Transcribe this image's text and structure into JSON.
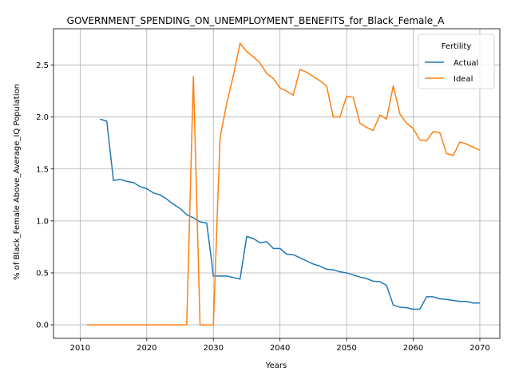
{
  "chart_data": {
    "type": "line",
    "title": "GOVERNMENT_SPENDING_ON_UNEMPLOYMENT_BENEFITS_for_Black_Female_A",
    "xlabel": "Years",
    "ylabel": "% of Black_Female Above_Average_IQ Population",
    "xlim": [
      2006,
      2073
    ],
    "ylim": [
      -0.13,
      2.85
    ],
    "xticks": [
      2010,
      2020,
      2030,
      2040,
      2050,
      2060,
      2070
    ],
    "yticks": [
      0.0,
      0.5,
      1.0,
      1.5,
      2.0,
      2.5
    ],
    "ytick_labels": [
      "0.0",
      "0.5",
      "1.0",
      "1.5",
      "2.0",
      "2.5"
    ],
    "grid": true,
    "legend": {
      "title": "Fertility",
      "placement": "top-right"
    },
    "series": [
      {
        "name": "Actual",
        "color": "#1f77b4",
        "points": [
          [
            2013,
            1.98
          ],
          [
            2014,
            1.96
          ],
          [
            2015,
            1.39
          ],
          [
            2016,
            1.4
          ],
          [
            2017,
            1.38
          ],
          [
            2018,
            1.37
          ],
          [
            2019,
            1.33
          ],
          [
            2020,
            1.31
          ],
          [
            2021,
            1.27
          ],
          [
            2022,
            1.25
          ],
          [
            2023,
            1.21
          ],
          [
            2024,
            1.16
          ],
          [
            2025,
            1.12
          ],
          [
            2026,
            1.06
          ],
          [
            2027,
            1.03
          ],
          [
            2028,
            0.99
          ],
          [
            2029,
            0.98
          ],
          [
            2029.6,
            0.68
          ],
          [
            2030,
            0.47
          ],
          [
            2031,
            0.47
          ],
          [
            2032,
            0.47
          ],
          [
            2033,
            0.455
          ],
          [
            2034,
            0.44
          ],
          [
            2035,
            0.85
          ],
          [
            2036,
            0.83
          ],
          [
            2037,
            0.79
          ],
          [
            2038,
            0.8
          ],
          [
            2039,
            0.735
          ],
          [
            2040,
            0.735
          ],
          [
            2041,
            0.68
          ],
          [
            2042,
            0.675
          ],
          [
            2043,
            0.645
          ],
          [
            2044,
            0.615
          ],
          [
            2045,
            0.585
          ],
          [
            2046,
            0.565
          ],
          [
            2047,
            0.535
          ],
          [
            2048,
            0.53
          ],
          [
            2049,
            0.51
          ],
          [
            2050,
            0.5
          ],
          [
            2051,
            0.48
          ],
          [
            2052,
            0.46
          ],
          [
            2053,
            0.445
          ],
          [
            2054,
            0.42
          ],
          [
            2055,
            0.415
          ],
          [
            2056,
            0.38
          ],
          [
            2057,
            0.19
          ],
          [
            2058,
            0.17
          ],
          [
            2059,
            0.165
          ],
          [
            2060,
            0.15
          ],
          [
            2061,
            0.15
          ],
          [
            2062,
            0.27
          ],
          [
            2063,
            0.27
          ],
          [
            2064,
            0.25
          ],
          [
            2065,
            0.245
          ],
          [
            2066,
            0.235
          ],
          [
            2067,
            0.225
          ],
          [
            2068,
            0.225
          ],
          [
            2069,
            0.21
          ],
          [
            2070,
            0.21
          ]
        ]
      },
      {
        "name": "Ideal",
        "color": "#ff7f0e",
        "points": [
          [
            2011,
            0.0
          ],
          [
            2012,
            0.0
          ],
          [
            2013,
            0.0
          ],
          [
            2014,
            0.0
          ],
          [
            2015,
            0.0
          ],
          [
            2016,
            0.0
          ],
          [
            2017,
            0.0
          ],
          [
            2018,
            0.0
          ],
          [
            2019,
            0.0
          ],
          [
            2020,
            0.0
          ],
          [
            2021,
            0.0
          ],
          [
            2022,
            0.0
          ],
          [
            2023,
            0.0
          ],
          [
            2024,
            0.0
          ],
          [
            2025,
            0.0
          ],
          [
            2026,
            0.0
          ],
          [
            2027,
            2.39
          ],
          [
            2028,
            0.0
          ],
          [
            2029,
            0.0
          ],
          [
            2030,
            0.0
          ],
          [
            2031,
            1.8
          ],
          [
            2032,
            2.13
          ],
          [
            2033,
            2.4
          ],
          [
            2034,
            2.71
          ],
          [
            2035,
            2.63
          ],
          [
            2036,
            2.58
          ],
          [
            2037,
            2.52
          ],
          [
            2038,
            2.42
          ],
          [
            2039,
            2.37
          ],
          [
            2040,
            2.28
          ],
          [
            2041,
            2.25
          ],
          [
            2042,
            2.21
          ],
          [
            2043,
            2.46
          ],
          [
            2044,
            2.43
          ],
          [
            2045,
            2.39
          ],
          [
            2046,
            2.35
          ],
          [
            2047,
            2.3
          ],
          [
            2048,
            2.0
          ],
          [
            2049,
            2.0
          ],
          [
            2050,
            2.2
          ],
          [
            2051,
            2.19
          ],
          [
            2052,
            1.94
          ],
          [
            2053,
            1.9
          ],
          [
            2054,
            1.87
          ],
          [
            2055,
            2.02
          ],
          [
            2056,
            1.98
          ],
          [
            2057,
            2.3
          ],
          [
            2058,
            2.03
          ],
          [
            2059,
            1.94
          ],
          [
            2060,
            1.89
          ],
          [
            2061,
            1.78
          ],
          [
            2062,
            1.77
          ],
          [
            2063,
            1.86
          ],
          [
            2064,
            1.85
          ],
          [
            2065,
            1.65
          ],
          [
            2066,
            1.63
          ],
          [
            2067,
            1.76
          ],
          [
            2068,
            1.74
          ],
          [
            2069,
            1.71
          ],
          [
            2070,
            1.68
          ]
        ]
      }
    ]
  }
}
